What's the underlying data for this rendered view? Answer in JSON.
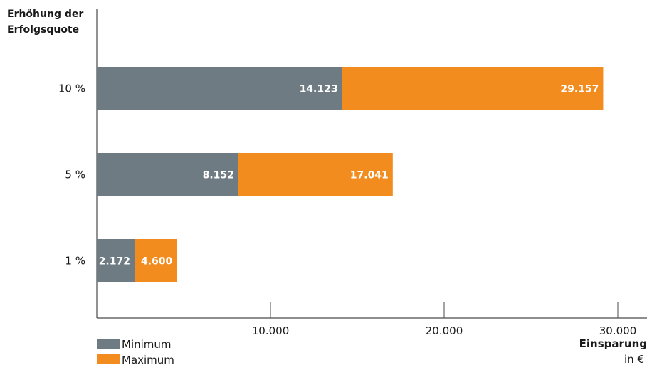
{
  "chart_data": {
    "type": "bar",
    "orientation": "horizontal",
    "stacked": true,
    "ylabel": "Erhöhung der Erfolgsquote",
    "xlabel": "Einsparung",
    "xunit": "in €",
    "categories": [
      "10 %",
      "5 %",
      "1 %"
    ],
    "series": [
      {
        "name": "Minimum",
        "values": [
          14123,
          8152,
          2172
        ],
        "labels": [
          "14.123",
          "8.152",
          "2.172"
        ],
        "color": "#6e7b82"
      },
      {
        "name": "Maximum",
        "values": [
          15034,
          8889,
          2428
        ],
        "labels": [
          "29.157",
          "17.041",
          "4.600"
        ],
        "color": "#f28c1e"
      }
    ],
    "xticks": [
      10000,
      20000,
      30000
    ],
    "xtick_labels": [
      "10.000",
      "20.000",
      "30.000"
    ],
    "xlim": [
      0,
      31500
    ],
    "grid": false,
    "legend": "bottom-left"
  }
}
